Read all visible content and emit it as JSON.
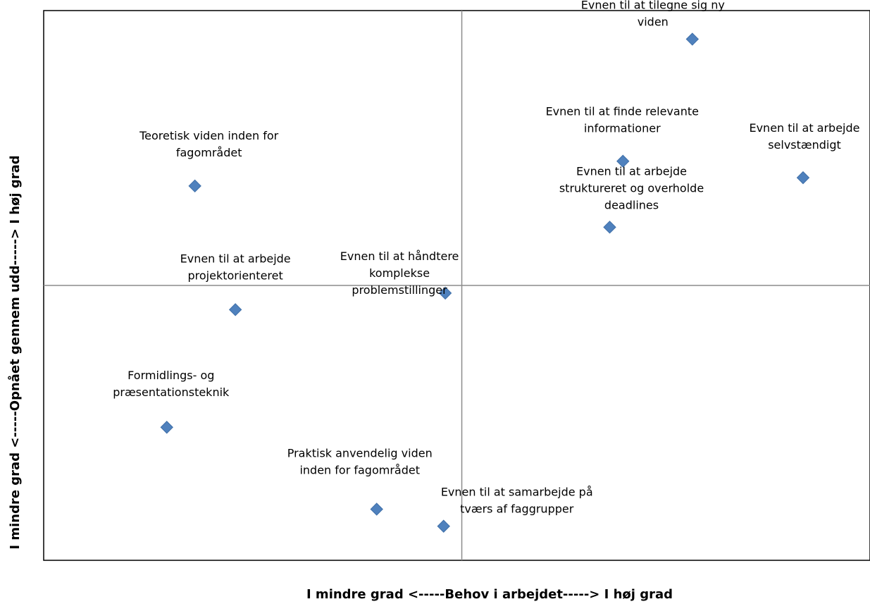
{
  "chart_data": {
    "type": "scatter",
    "title": "",
    "xlabel": "I mindre grad <-----Behov i arbejdet-----> I høj grad",
    "ylabel": "I mindre grad <-----Opnået gennem udd-----> I høj grad",
    "xlim": [
      0,
      100
    ],
    "ylim": [
      0,
      100
    ],
    "x_crossing": 50.6,
    "y_crossing": 50,
    "grid": false,
    "marker": "diamond",
    "marker_color": "#4f81bd",
    "frame_color": "#000000",
    "crossline_color": "#8c8c8c",
    "points": [
      {
        "label": [
          "Evnen til at tilegne sig ny",
          "viden"
        ],
        "x": 78.5,
        "y": 94.8
      },
      {
        "label": [
          "Evnen til at finde relevante",
          "informationer"
        ],
        "x": 70.1,
        "y": 72.6
      },
      {
        "label": [
          "Evnen til at arbejde",
          "selvstændigt"
        ],
        "x": 91.9,
        "y": 69.6
      },
      {
        "label": [
          "Evnen til at arbejde",
          "struktureret og overholde",
          "deadlines"
        ],
        "x": 68.5,
        "y": 60.6
      },
      {
        "label": [
          "Teoretisk viden inden for",
          "fagområdet"
        ],
        "x": 18.3,
        "y": 68.1
      },
      {
        "label": [
          "Evnen til at arbejde",
          "projektorienteret"
        ],
        "x": 23.2,
        "y": 45.6
      },
      {
        "label": [
          "Evnen til at håndtere",
          "komplekse",
          "problemstillinger"
        ],
        "x": 48.6,
        "y": 48.6
      },
      {
        "label": [
          "Formidlings- og",
          "præsentationsteknik"
        ],
        "x": 14.9,
        "y": 24.2
      },
      {
        "label": [
          "Praktisk anvendelig viden",
          "inden for fagområdet"
        ],
        "x": 40.3,
        "y": 9.3
      },
      {
        "label": [
          "Evnen til at samarbejde på",
          "tværs af faggrupper"
        ],
        "x": 48.4,
        "y": 6.2
      }
    ]
  }
}
